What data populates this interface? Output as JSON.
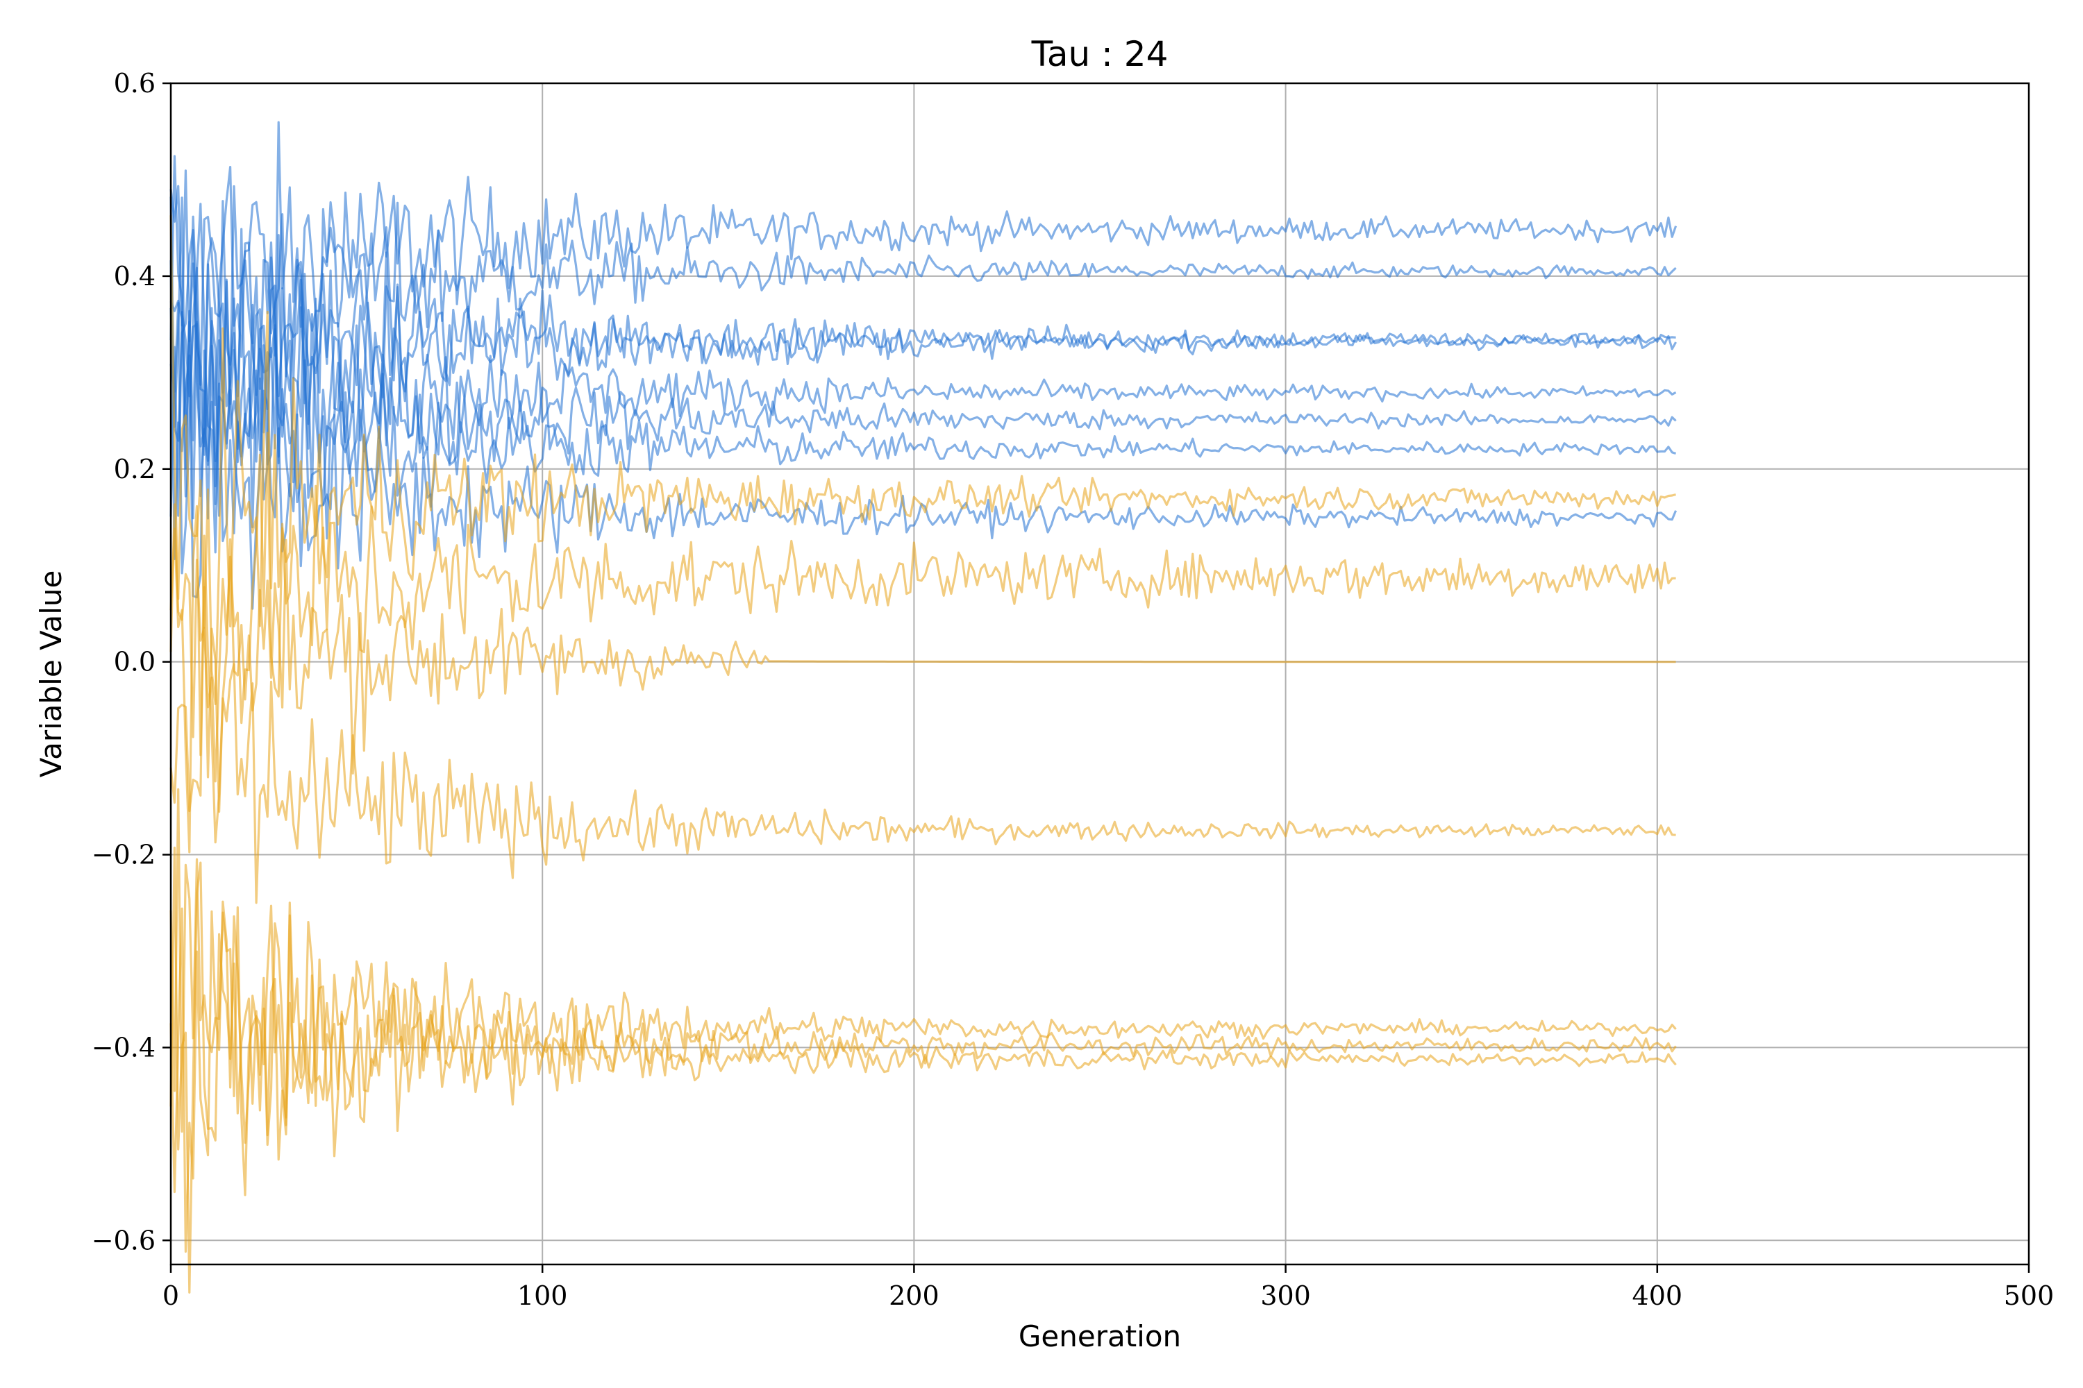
{
  "chart_data": {
    "type": "line",
    "title": "Tau : 24",
    "xlabel": "Generation",
    "ylabel": "Variable Value",
    "xlim": [
      0,
      500
    ],
    "ylim": [
      -0.625,
      0.6
    ],
    "xticks": [
      0,
      100,
      200,
      300,
      400,
      500
    ],
    "xtick_labels": [
      "0",
      "100",
      "200",
      "300",
      "400",
      "500"
    ],
    "yticks": [
      -0.6,
      -0.4,
      -0.2,
      0.0,
      0.2,
      0.4,
      0.6
    ],
    "ytick_labels": [
      "−0.6",
      "−0.4",
      "−0.2",
      "0.0",
      "0.2",
      "0.4",
      "0.6"
    ],
    "grid": true,
    "colors": {
      "blue": "#1f6fd1",
      "orange": "#e8a317"
    },
    "series_shared": {
      "generations": 405,
      "note_shape": "each series starts noisy near generation 0 and converges to its final value by about generation 150"
    },
    "series": [
      {
        "color": "blue",
        "start": 0.38,
        "final": 0.448,
        "noise": 0.006
      },
      {
        "color": "blue",
        "start": 0.36,
        "final": 0.405,
        "noise": 0.003
      },
      {
        "color": "blue",
        "start": 0.34,
        "final": 0.334,
        "noise": 0.004
      },
      {
        "color": "blue",
        "start": 0.32,
        "final": 0.332,
        "noise": 0.004
      },
      {
        "color": "blue",
        "start": 0.3,
        "final": 0.279,
        "noise": 0.003
      },
      {
        "color": "blue",
        "start": 0.28,
        "final": 0.251,
        "noise": 0.003
      },
      {
        "color": "blue",
        "start": 0.26,
        "final": 0.221,
        "noise": 0.003
      },
      {
        "color": "blue",
        "start": 0.22,
        "final": 0.15,
        "noise": 0.005
      },
      {
        "color": "orange",
        "start": 0.15,
        "final": 0.17,
        "noise": 0.007
      },
      {
        "color": "orange",
        "start": 0.05,
        "final": 0.088,
        "noise": 0.014
      },
      {
        "color": "orange",
        "start": 0.02,
        "final": 0.0,
        "noise": 0.0
      },
      {
        "color": "orange",
        "start": -0.1,
        "final": -0.175,
        "noise": 0.003
      },
      {
        "color": "orange",
        "start": -0.35,
        "final": -0.38,
        "noise": 0.003
      },
      {
        "color": "orange",
        "start": -0.38,
        "final": -0.398,
        "noise": 0.004
      },
      {
        "color": "orange",
        "start": -0.4,
        "final": -0.412,
        "noise": 0.003
      }
    ]
  }
}
